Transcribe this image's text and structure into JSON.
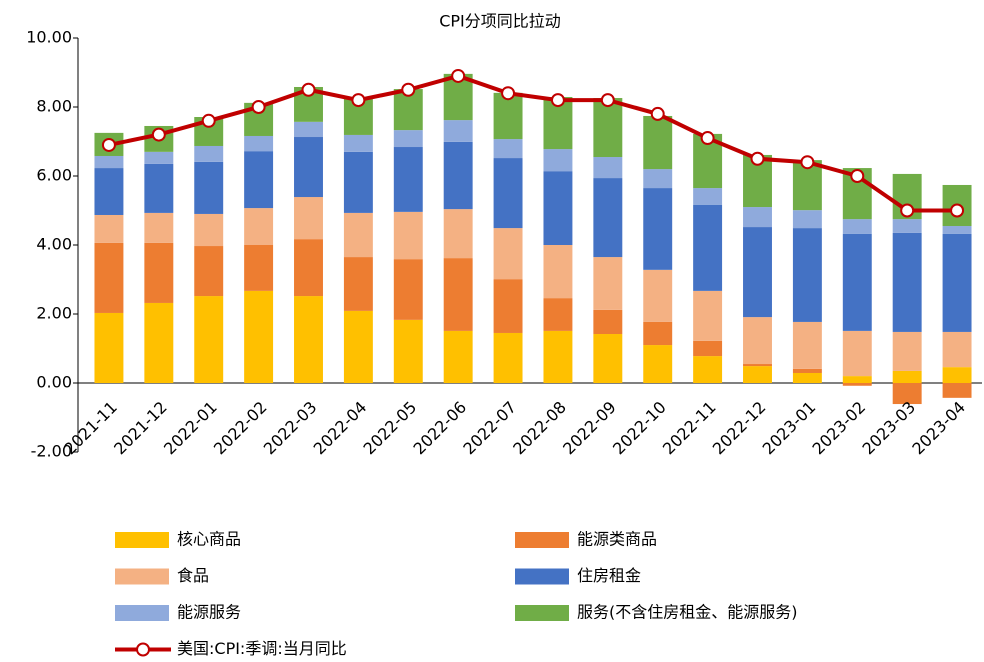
{
  "chart_data": {
    "type": "bar",
    "title": "CPI分项同比拉动",
    "categories": [
      "2021-11",
      "2021-12",
      "2022-01",
      "2022-02",
      "2022-03",
      "2022-04",
      "2022-05",
      "2022-06",
      "2022-07",
      "2022-08",
      "2022-09",
      "2022-10",
      "2022-11",
      "2022-12",
      "2023-01",
      "2023-02",
      "2023-03",
      "2023-04"
    ],
    "series": [
      {
        "name": "核心商品",
        "color": "#ffc000",
        "values": [
          2.03,
          2.32,
          2.52,
          2.67,
          2.52,
          2.09,
          1.83,
          1.51,
          1.45,
          1.51,
          1.42,
          1.1,
          0.78,
          0.49,
          0.29,
          0.2,
          0.35,
          0.46
        ]
      },
      {
        "name": "能源类商品",
        "color": "#ed7d31",
        "values": [
          2.03,
          1.74,
          1.45,
          1.33,
          1.65,
          1.56,
          1.76,
          2.11,
          1.56,
          0.95,
          0.7,
          0.67,
          0.44,
          0.06,
          0.12,
          -0.08,
          -0.61,
          -0.43
        ]
      },
      {
        "name": "食品",
        "color": "#f4b183",
        "values": [
          0.81,
          0.87,
          0.93,
          1.07,
          1.22,
          1.28,
          1.37,
          1.42,
          1.48,
          1.54,
          1.53,
          1.51,
          1.45,
          1.36,
          1.36,
          1.31,
          1.13,
          1.02
        ]
      },
      {
        "name": "住房租金",
        "color": "#4472c4",
        "values": [
          1.36,
          1.42,
          1.51,
          1.65,
          1.74,
          1.77,
          1.88,
          1.95,
          2.03,
          2.14,
          2.29,
          2.37,
          2.49,
          2.61,
          2.72,
          2.81,
          2.87,
          2.84
        ]
      },
      {
        "name": "能源服务",
        "color": "#8faadc",
        "values": [
          0.35,
          0.35,
          0.46,
          0.44,
          0.44,
          0.49,
          0.49,
          0.63,
          0.55,
          0.64,
          0.61,
          0.55,
          0.49,
          0.58,
          0.52,
          0.43,
          0.4,
          0.23
        ]
      },
      {
        "name": "服务(不含住房租金、能源服务)",
        "color": "#70ad47",
        "values": [
          0.67,
          0.75,
          0.84,
          0.96,
          1.01,
          1.07,
          1.19,
          1.34,
          1.34,
          1.51,
          1.71,
          1.54,
          1.57,
          1.51,
          1.45,
          1.48,
          1.31,
          1.19
        ]
      },
      {
        "name": "美国:CPI:季调:当月同比",
        "color": "#c00000",
        "type": "line",
        "values": [
          6.9,
          7.2,
          7.6,
          8.0,
          8.5,
          8.2,
          8.5,
          8.9,
          8.4,
          8.2,
          8.2,
          7.8,
          7.1,
          6.5,
          6.4,
          6.0,
          5.0,
          5.0
        ]
      }
    ],
    "ylim": [
      -2,
      10
    ],
    "yticks": [
      {
        "value": -2,
        "label": "-2.00"
      },
      {
        "value": 0,
        "label": "0.00"
      },
      {
        "value": 2,
        "label": "2.00"
      },
      {
        "value": 4,
        "label": "4.00"
      },
      {
        "value": 6,
        "label": "6.00"
      },
      {
        "value": 8,
        "label": "8.00"
      },
      {
        "value": 10,
        "label": "10.00"
      }
    ],
    "stacked": true
  }
}
